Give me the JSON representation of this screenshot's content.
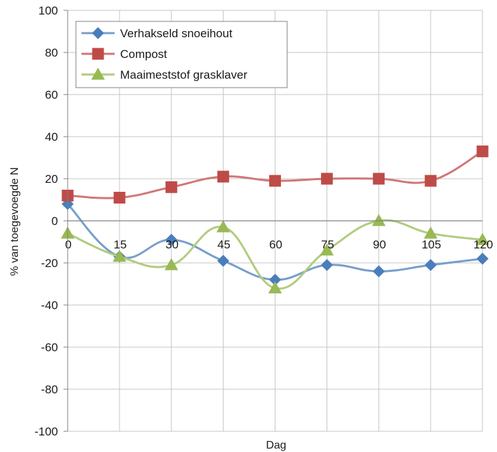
{
  "chart_data": {
    "type": "line",
    "title": "",
    "xlabel": "Dag",
    "ylabel": "% van toegevoegde N",
    "x": [
      0,
      15,
      30,
      45,
      60,
      75,
      90,
      105,
      120
    ],
    "x_tick_labels": [
      "0",
      "15",
      "30",
      "45",
      "60",
      "75",
      "90",
      "105",
      "120"
    ],
    "ylim": [
      -100,
      100
    ],
    "y_ticks": [
      100,
      80,
      60,
      40,
      20,
      0,
      -20,
      -40,
      -60,
      -80,
      -100
    ],
    "grid": true,
    "legend_position": "top-left",
    "series": [
      {
        "name": "Verhakseld snoeihout",
        "color": "#4a7ebb",
        "marker": "diamond",
        "values": [
          8,
          -17,
          -9,
          -19,
          -28,
          -21,
          -24,
          -21,
          -18
        ]
      },
      {
        "name": "Compost",
        "color": "#be4b48",
        "marker": "square",
        "values": [
          12,
          11,
          16,
          21,
          19,
          20,
          20,
          19,
          33
        ]
      },
      {
        "name": "Maaimeststof grasklaver",
        "color": "#98b954",
        "marker": "triangle",
        "values": [
          -6,
          -17,
          -21,
          -3,
          -32,
          -14,
          0,
          -6,
          -9
        ]
      }
    ]
  }
}
